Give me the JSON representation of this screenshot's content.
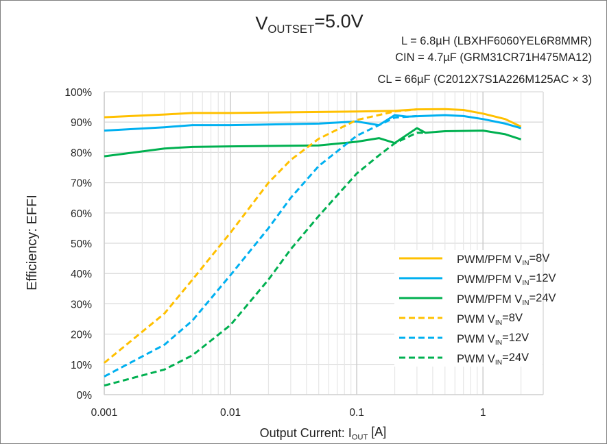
{
  "chart_data": {
    "type": "line",
    "title": "VOUTSET=5.0V",
    "title_subscript": "OUTSET",
    "annotations": [
      "L = 6.8µH (LBXHF6060YEL6R8MMR)",
      "CIN = 4.7µF (GRM31CR71H475MA12)",
      "CL = 66µF (C2012X7S1A226M125AC × 3)"
    ],
    "xlabel": "Output Current: IOUT [A]",
    "ylabel": "Efficiency: EFFI",
    "x_scale": "log",
    "xlim": [
      0.001,
      3
    ],
    "ylim": [
      0,
      100
    ],
    "grid": true,
    "legend_placement": "bottom-right",
    "x_ticks": [
      "0.001",
      "0.01",
      "0.1",
      "1"
    ],
    "y_ticks": [
      "0%",
      "10%",
      "20%",
      "30%",
      "40%",
      "50%",
      "60%",
      "70%",
      "80%",
      "90%",
      "100%"
    ],
    "series": [
      {
        "name": "PWM/PFM VIN=8V",
        "color": "#FFC000",
        "style": "solid",
        "x": [
          0.001,
          0.003,
          0.005,
          0.01,
          0.1,
          0.2,
          0.3,
          0.5,
          0.7,
          1,
          1.5,
          2
        ],
        "y": [
          91.6,
          92.5,
          93,
          93,
          93.5,
          93.7,
          94.2,
          94.3,
          94,
          92.8,
          91,
          88.5
        ]
      },
      {
        "name": "PWM/PFM VIN=12V",
        "color": "#00B0F0",
        "style": "solid",
        "x": [
          0.001,
          0.003,
          0.005,
          0.01,
          0.05,
          0.1,
          0.15,
          0.2,
          0.25,
          0.5,
          0.7,
          1,
          1.5,
          2
        ],
        "y": [
          87.2,
          88.3,
          89,
          89,
          89.5,
          90.2,
          89,
          92.3,
          91.8,
          92.3,
          92,
          91,
          89.5,
          88
        ]
      },
      {
        "name": "PWM/PFM VIN=24V",
        "color": "#00B050",
        "style": "solid",
        "x": [
          0.001,
          0.003,
          0.005,
          0.01,
          0.05,
          0.1,
          0.15,
          0.2,
          0.3,
          0.35,
          0.5,
          1,
          1.5,
          2
        ],
        "y": [
          78.7,
          81.3,
          81.8,
          82,
          82.3,
          83.5,
          84.7,
          83.1,
          88,
          86.5,
          87,
          87.2,
          86,
          84.3
        ]
      },
      {
        "name": "PWM VIN=8V",
        "color": "#FFC000",
        "style": "dashed",
        "x": [
          0.001,
          0.003,
          0.005,
          0.01,
          0.02,
          0.03,
          0.05,
          0.1,
          0.2,
          0.3
        ],
        "y": [
          10.5,
          26.8,
          38,
          53.5,
          70,
          77.5,
          84.5,
          90.7,
          93.5,
          94.2
        ]
      },
      {
        "name": "PWM VIN=12V",
        "color": "#00B0F0",
        "style": "dashed",
        "x": [
          0.001,
          0.003,
          0.005,
          0.01,
          0.02,
          0.03,
          0.05,
          0.1,
          0.2,
          0.3
        ],
        "y": [
          6,
          16.5,
          24.5,
          39.5,
          55,
          65,
          75.5,
          85.5,
          91.5,
          92
        ]
      },
      {
        "name": "PWM VIN=24V",
        "color": "#00B050",
        "style": "dashed",
        "x": [
          0.001,
          0.003,
          0.005,
          0.01,
          0.02,
          0.03,
          0.05,
          0.1,
          0.15,
          0.2,
          0.3,
          0.35
        ],
        "y": [
          3,
          8.3,
          13,
          23,
          38,
          48,
          59,
          73,
          79,
          83,
          86.5,
          86.5
        ]
      }
    ]
  }
}
